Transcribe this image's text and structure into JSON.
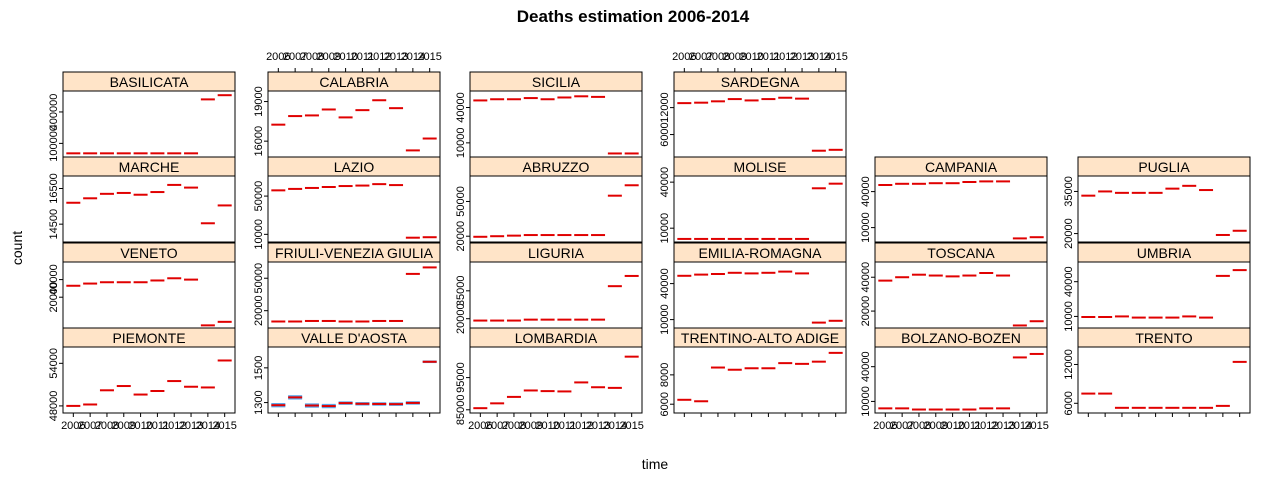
{
  "chart_data": {
    "type": "scatter",
    "title": "Deaths estimation 2006-2014",
    "xlabel": "time",
    "ylabel": "count",
    "x_ticks": [
      "2006",
      "2007",
      "2008",
      "2009",
      "2010",
      "2011",
      "2012",
      "2013",
      "2014",
      "2015"
    ],
    "colors": {
      "point": "#e00000",
      "band": "#5aa6e8",
      "strip": "#ffe4c8"
    },
    "panels": [
      {
        "name": "BASILICATA",
        "yticks": [
          100000,
          400000
        ],
        "ylim": [
          -30000,
          600000
        ],
        "values": [
          5000,
          5000,
          5000,
          5000,
          5000,
          5000,
          5000,
          5000,
          520000,
          560000
        ]
      },
      {
        "name": "CALABRIA",
        "yticks": [
          16000,
          19000
        ],
        "ylim": [
          14800,
          19800
        ],
        "values": [
          17250,
          17900,
          17950,
          18400,
          17800,
          18350,
          19100,
          18500,
          15300,
          16200
        ]
      },
      {
        "name": "SICILIA",
        "yticks": [
          10000,
          40000
        ],
        "ylim": [
          -2000,
          54000
        ],
        "values": [
          46000,
          47000,
          47000,
          48000,
          47000,
          48500,
          49500,
          49000,
          1000,
          1000
        ]
      },
      {
        "name": "SARDEGNA",
        "yticks": [
          6000,
          12000
        ],
        "ylim": [
          1000,
          15700
        ],
        "values": [
          13000,
          13100,
          13400,
          13900,
          13600,
          13900,
          14200,
          14000,
          2400,
          2600
        ]
      },
      {
        "name": "MARCHE",
        "yticks": [
          14500,
          16500
        ],
        "ylim": [
          13500,
          17200
        ],
        "values": [
          15700,
          15950,
          16200,
          16250,
          16150,
          16300,
          16700,
          16550,
          14550,
          15550
        ]
      },
      {
        "name": "LAZIO",
        "yticks": [
          10000,
          50000
        ],
        "ylim": [
          2000,
          71000
        ],
        "values": [
          56000,
          57500,
          58500,
          59500,
          60500,
          61000,
          62500,
          61500,
          6500,
          7000
        ]
      },
      {
        "name": "ABRUZZO",
        "yticks": [
          20000,
          50000
        ],
        "ylim": [
          15000,
          72000
        ],
        "values": [
          19500,
          20000,
          20500,
          21000,
          21000,
          21000,
          21000,
          21000,
          55000,
          64000
        ]
      },
      {
        "name": "MOLISE",
        "yticks": [
          10000,
          40000
        ],
        "ylim": [
          1000,
          44000
        ],
        "values": [
          3000,
          3000,
          3000,
          3000,
          3000,
          3000,
          3000,
          3000,
          36000,
          39000
        ]
      },
      {
        "name": "CAMPANIA",
        "yticks": [
          10000,
          40000
        ],
        "ylim": [
          -2000,
          53000
        ],
        "values": [
          45500,
          46500,
          46500,
          47000,
          47000,
          48000,
          48500,
          48500,
          1000,
          2000
        ]
      },
      {
        "name": "PUGLIA",
        "yticks": [
          20000,
          35000
        ],
        "ylim": [
          17000,
          40500
        ],
        "values": [
          33500,
          35000,
          34500,
          34500,
          34500,
          36000,
          37000,
          35500,
          19500,
          21000
        ]
      },
      {
        "name": "VENETO",
        "yticks": [
          20000,
          40000
        ],
        "ylim": [
          -15000,
          60000
        ],
        "values": [
          33000,
          35500,
          37000,
          37000,
          37000,
          39000,
          41500,
          40000,
          -12000,
          -8000
        ]
      },
      {
        "name": "FRIULI-VENEZIA GIULIA",
        "yticks": [
          20000,
          50000
        ],
        "ylim": [
          4000,
          65000
        ],
        "values": [
          10000,
          10000,
          10500,
          10500,
          10000,
          10000,
          10500,
          10500,
          54000,
          60000
        ]
      },
      {
        "name": "LIGURIA",
        "yticks": [
          20000,
          35000
        ],
        "ylim": [
          15000,
          50500
        ],
        "values": [
          19000,
          19000,
          19000,
          19500,
          19500,
          19500,
          19500,
          19500,
          37500,
          43000
        ]
      },
      {
        "name": "EMILIA-ROMAGNA",
        "yticks": [
          10000,
          40000
        ],
        "ylim": [
          3000,
          58000
        ],
        "values": [
          46500,
          47500,
          48000,
          49000,
          48500,
          49000,
          50000,
          48500,
          7500,
          9000
        ]
      },
      {
        "name": "TOSCANA",
        "yticks": [
          20000,
          40000
        ],
        "ylim": [
          10000,
          49000
        ],
        "values": [
          38000,
          40000,
          41500,
          41000,
          40500,
          41000,
          42500,
          41000,
          11500,
          14000
        ]
      },
      {
        "name": "UMBRIA",
        "yticks": [
          10000,
          40000
        ],
        "ylim": [
          0,
          57000
        ],
        "values": [
          9500,
          9500,
          10000,
          9000,
          9000,
          9000,
          10000,
          9000,
          45000,
          50000
        ]
      },
      {
        "name": "PIEMONTE",
        "yticks": [
          48000,
          54000
        ],
        "ylim": [
          47000,
          56300
        ],
        "values": [
          48000,
          48200,
          50200,
          50800,
          49600,
          50100,
          51500,
          50700,
          50600,
          54400
        ]
      },
      {
        "name": "VALLE D'AOSTA",
        "yticks": [
          1300,
          1500
        ],
        "ylim": [
          1240,
          1620
        ],
        "values": [
          1285,
          1330,
          1283,
          1280,
          1297,
          1293,
          1292,
          1291,
          1298,
          1535
        ],
        "band": [
          25,
          25,
          25,
          25,
          20,
          20,
          20,
          20,
          20,
          15
        ]
      },
      {
        "name": "LOMBARDIA",
        "yticks": [
          85000,
          95000
        ],
        "ylim": [
          84000,
          104500
        ],
        "values": [
          85500,
          87000,
          89000,
          91000,
          90800,
          90700,
          93500,
          92000,
          91800,
          101500
        ]
      },
      {
        "name": "TRENTINO-ALTO ADIGE",
        "yticks": [
          6000,
          8000
        ],
        "ylim": [
          5400,
          9900
        ],
        "values": [
          6300,
          6200,
          8500,
          8350,
          8450,
          8450,
          8800,
          8750,
          8900,
          9500
        ]
      },
      {
        "name": "BOLZANO-BOZEN",
        "yticks": [
          10000,
          40000
        ],
        "ylim": [
          0,
          57000
        ],
        "values": [
          4000,
          4000,
          3000,
          3000,
          3000,
          3000,
          4000,
          4000,
          48000,
          51000
        ]
      },
      {
        "name": "TRENTO",
        "yticks": [
          6000,
          12000
        ],
        "ylim": [
          4500,
          14700
        ],
        "values": [
          7500,
          7500,
          5300,
          5300,
          5300,
          5300,
          5300,
          5300,
          5600,
          12400
        ]
      }
    ]
  }
}
